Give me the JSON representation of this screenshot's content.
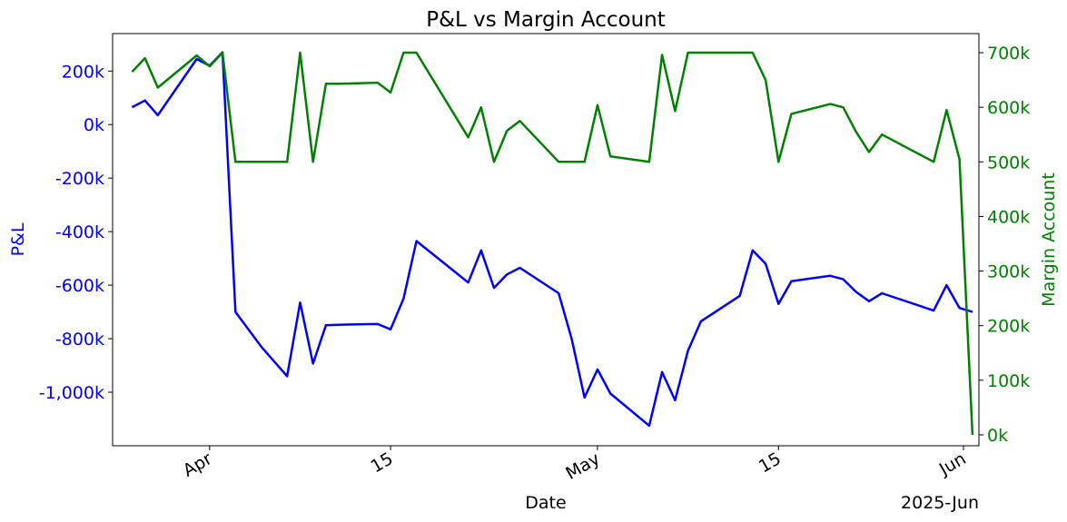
{
  "chart_data": {
    "type": "line",
    "title": "P&L vs Margin Account",
    "xlabel": "Date",
    "ylabel_left": "P&L",
    "ylabel_right": "Margin Account",
    "x_offset_label": "2025-Jun",
    "colors": {
      "left": "#0000ff",
      "right": "#008000",
      "axis": "#000000"
    },
    "xlim": [
      -1.5,
      65.5
    ],
    "ylim_left": [
      -1200000,
      340000
    ],
    "ylim_right": [
      -20000,
      735000
    ],
    "x_ticks": [
      {
        "x": 6,
        "label": "Apr"
      },
      {
        "x": 20,
        "label": "15"
      },
      {
        "x": 36,
        "label": "May"
      },
      {
        "x": 50,
        "label": "15"
      },
      {
        "x": 67,
        "label": "Jun"
      }
    ],
    "y_ticks_left": [
      {
        "value": 200000,
        "label": "200k"
      },
      {
        "value": 0,
        "label": "0k"
      },
      {
        "value": -200000,
        "label": "-200k"
      },
      {
        "value": -400000,
        "label": "-400k"
      },
      {
        "value": -600000,
        "label": "-600k"
      },
      {
        "value": -800000,
        "label": "-800k"
      },
      {
        "value": -1000000,
        "label": "-1,000k"
      }
    ],
    "y_ticks_right": [
      {
        "value": 700000,
        "label": "700k"
      },
      {
        "value": 600000,
        "label": "600k"
      },
      {
        "value": 500000,
        "label": "500k"
      },
      {
        "value": 400000,
        "label": "400k"
      },
      {
        "value": 300000,
        "label": "300k"
      },
      {
        "value": 200000,
        "label": "200k"
      },
      {
        "value": 100000,
        "label": "100k"
      },
      {
        "value": 0,
        "label": "0k"
      }
    ],
    "series": [
      {
        "name": "P&L",
        "axis": "left",
        "x": [
          0,
          1,
          2,
          5,
          6,
          7,
          8,
          10,
          12,
          13,
          14,
          15,
          16,
          19,
          20,
          21,
          22,
          26,
          27,
          28,
          29,
          30,
          33,
          34,
          35,
          36,
          37,
          40,
          41,
          42,
          43,
          44,
          47,
          48,
          49,
          50,
          51,
          54,
          55,
          56,
          57,
          58,
          62,
          63,
          64,
          65
        ],
        "values": [
          65000,
          90000,
          35000,
          245000,
          220000,
          270000,
          -700000,
          -830000,
          -940000,
          -665000,
          -893000,
          -750000,
          -748000,
          -745000,
          -765000,
          -650000,
          -435000,
          -590000,
          -470000,
          -610000,
          -560000,
          -535000,
          -630000,
          -800000,
          -1020000,
          -915000,
          -1005000,
          -1125000,
          -925000,
          -1030000,
          -845000,
          -735000,
          -640000,
          -470000,
          -520000,
          -670000,
          -585000,
          -565000,
          -578000,
          -625000,
          -660000,
          -630000,
          -695000,
          -600000,
          -685000,
          -700000
        ]
      },
      {
        "name": "Margin Account",
        "axis": "right",
        "x": [
          0,
          1,
          2,
          5,
          6,
          7,
          8,
          9,
          10,
          12,
          13,
          14,
          15,
          16,
          19,
          20,
          21,
          22,
          26,
          27,
          28,
          29,
          30,
          33,
          34,
          35,
          36,
          37,
          40,
          41,
          42,
          43,
          44,
          47,
          48,
          49,
          50,
          51,
          54,
          55,
          56,
          57,
          58,
          62,
          63,
          64,
          65
        ],
        "values": [
          665000,
          690000,
          636000,
          695000,
          675000,
          700000,
          500000,
          500000,
          500000,
          500000,
          700000,
          500000,
          643000,
          643000,
          645000,
          627000,
          700000,
          700000,
          545000,
          600000,
          500000,
          557000,
          575000,
          500000,
          500000,
          500000,
          604000,
          510000,
          500000,
          696000,
          593000,
          700000,
          700000,
          700000,
          700000,
          650000,
          500000,
          588000,
          606000,
          600000,
          555000,
          518000,
          550000,
          500000,
          595000,
          505000,
          0
        ]
      }
    ]
  }
}
